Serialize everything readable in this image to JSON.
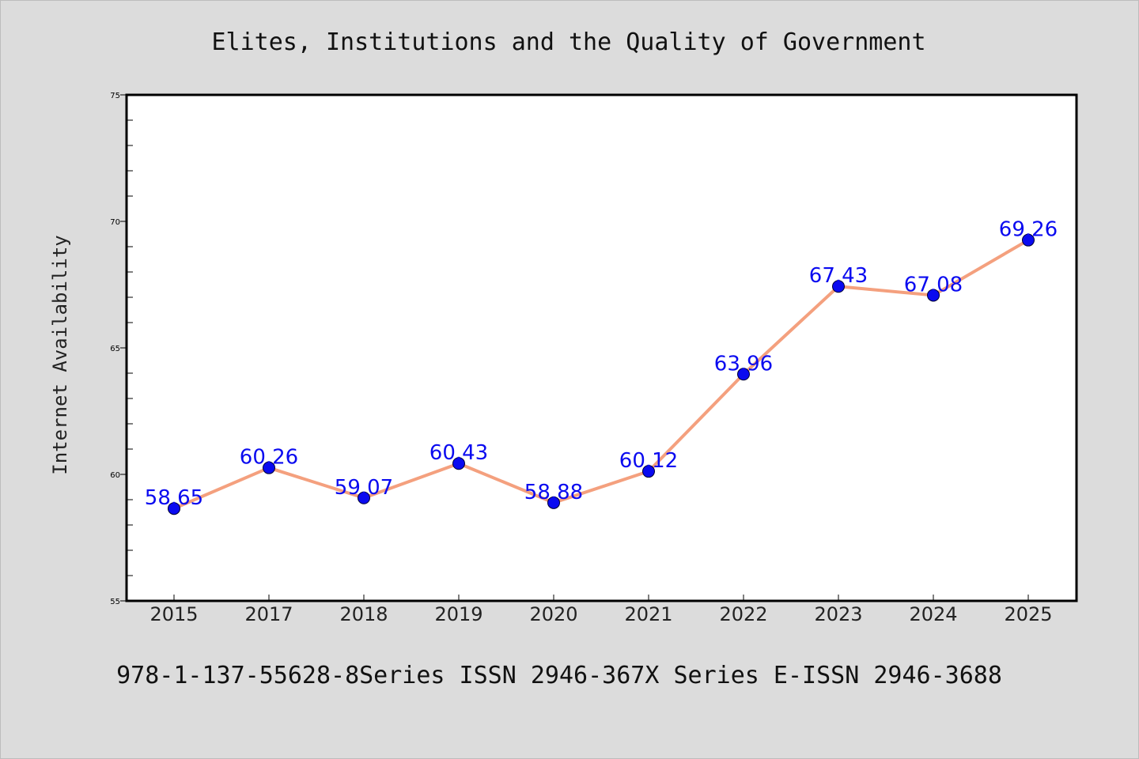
{
  "chart_data": {
    "type": "line",
    "title": "Elites, Institutions and the Quality of Government",
    "xlabel": "",
    "ylabel": "Internet Availability",
    "categories": [
      "2015",
      "2017",
      "2018",
      "2019",
      "2020",
      "2021",
      "2022",
      "2023",
      "2024",
      "2025"
    ],
    "series": [
      {
        "values": [
          58.65,
          60.26,
          59.07,
          60.43,
          58.88,
          60.12,
          63.96,
          67.43,
          67.08,
          69.26
        ],
        "data_labels": [
          "58.65",
          "60.26",
          "59.07",
          "60.43",
          "58.88",
          "60.12",
          "63.96",
          "67.43",
          "67.08",
          "69.26"
        ],
        "line_color": "#f4a07e",
        "marker_color": "#0a0af0",
        "label_color": "#0a0af0"
      }
    ],
    "ylim": [
      55,
      75
    ],
    "yticks": [
      "55",
      "60",
      "65",
      "70",
      "75"
    ],
    "grid": false,
    "legend": "none",
    "background_color": "#dcdcdc",
    "plot_background_color": "#ffffff"
  },
  "footer": "978-1-137-55628-8Series ISSN 2946-367X Series E-ISSN 2946-3688"
}
